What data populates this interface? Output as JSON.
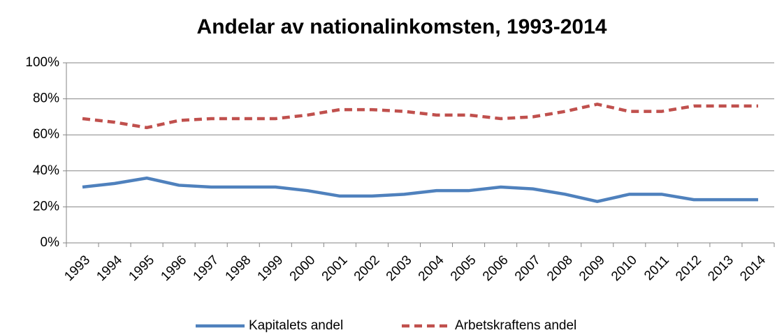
{
  "chart_data": {
    "type": "line",
    "title": "Andelar av nationalinkomsten, 1993-2014",
    "categories": [
      "1993",
      "1994",
      "1995",
      "1996",
      "1997",
      "1998",
      "1999",
      "2000",
      "2001",
      "2002",
      "2003",
      "2004",
      "2005",
      "2006",
      "2007",
      "2008",
      "2009",
      "2010",
      "2011",
      "2012",
      "2013",
      "2014"
    ],
    "series": [
      {
        "name": "Kapitalets andel",
        "color": "#4f81bd",
        "dash": false,
        "values": [
          31,
          33,
          36,
          32,
          31,
          31,
          31,
          29,
          26,
          26,
          27,
          29,
          29,
          31,
          30,
          27,
          23,
          27,
          27,
          24,
          24,
          24
        ]
      },
      {
        "name": "Arbetskraftens andel",
        "color": "#c0504d",
        "dash": true,
        "values": [
          69,
          67,
          64,
          68,
          69,
          69,
          69,
          71,
          74,
          74,
          73,
          71,
          71,
          69,
          70,
          73,
          77,
          73,
          73,
          76,
          76,
          76
        ]
      }
    ],
    "ylim": [
      0,
      100
    ],
    "yticks": [
      {
        "value": 0,
        "label": "0%"
      },
      {
        "value": 20,
        "label": "20%"
      },
      {
        "value": 40,
        "label": "40%"
      },
      {
        "value": 60,
        "label": "60%"
      },
      {
        "value": 80,
        "label": "80%"
      },
      {
        "value": 100,
        "label": "100%"
      }
    ],
    "grid": true,
    "legend": "bottom"
  }
}
